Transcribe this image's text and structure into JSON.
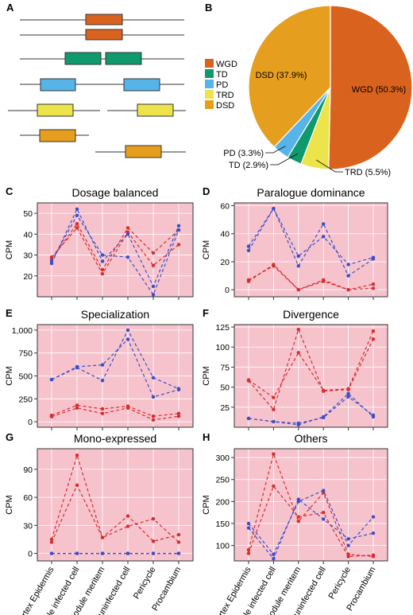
{
  "panels": {
    "A": {
      "label": "A",
      "legend": [
        {
          "name": "WGD",
          "color": "#d9621e"
        },
        {
          "name": "TD",
          "color": "#0f9a6e"
        },
        {
          "name": "PD",
          "color": "#56b4e9"
        },
        {
          "name": "TRD",
          "color": "#ede34a"
        },
        {
          "name": "DSD",
          "color": "#e69e1e"
        }
      ]
    },
    "B": {
      "label": "B"
    }
  },
  "colors": {
    "red": "#d62d2d",
    "blue": "#3a4fc7",
    "plot_bg": "#f6c3cd",
    "grid": "#ffffff"
  },
  "x_categories": [
    "Cortex Epidermis",
    "Nodule infected cell",
    "Nodule meritem",
    "Nodule uninfected cell",
    "Pericycle",
    "Procambium"
  ],
  "chart_data": [
    {
      "type": "pie",
      "panel": "B",
      "labels": [
        "WGD (50.3%)",
        "TRD (5.5%)",
        "TD (2.9%)",
        "PD (3.3%)",
        "DSD (37.9%)"
      ],
      "values": [
        50.3,
        5.5,
        2.9,
        3.3,
        37.9
      ],
      "colors": [
        "#d9621e",
        "#ede34a",
        "#0f9a6e",
        "#56b4e9",
        "#e69e1e"
      ]
    },
    {
      "type": "line",
      "panel": "C",
      "label": "C",
      "title": "Dosage balanced",
      "ylabel": "CPM",
      "ylim": [
        10,
        55
      ],
      "yticks": [
        20,
        30,
        40,
        50
      ],
      "ytick_labels": [
        "20",
        "30",
        "40",
        "50"
      ],
      "series": [
        {
          "color": "red",
          "values": [
            29,
            43,
            21,
            41,
            25,
            35
          ]
        },
        {
          "color": "red",
          "values": [
            28,
            45,
            23,
            43,
            31,
            42
          ]
        },
        {
          "color": "blue",
          "values": [
            26,
            52,
            27,
            40,
            15,
            44
          ]
        },
        {
          "color": "blue",
          "values": [
            27,
            49,
            30,
            29,
            11,
            42
          ]
        }
      ]
    },
    {
      "type": "line",
      "panel": "D",
      "label": "D",
      "title": "Paralogue dominance",
      "ylabel": "CPM",
      "ylim": [
        -5,
        62
      ],
      "yticks": [
        0,
        20,
        40,
        60
      ],
      "ytick_labels": [
        "0",
        "20",
        "40",
        "60"
      ],
      "series": [
        {
          "color": "blue",
          "values": [
            28,
            58,
            17,
            47,
            10,
            22
          ]
        },
        {
          "color": "blue",
          "values": [
            31,
            58,
            24,
            38,
            18,
            23
          ]
        },
        {
          "color": "red",
          "values": [
            6,
            18,
            0,
            6,
            0,
            4
          ]
        },
        {
          "color": "red",
          "values": [
            7,
            17,
            0,
            7,
            0,
            1
          ]
        }
      ]
    },
    {
      "type": "line",
      "panel": "E",
      "label": "E",
      "title": "Specialization",
      "ylabel": "CPM",
      "ylim": [
        -60,
        1060
      ],
      "yticks": [
        0,
        250,
        500,
        750,
        1000
      ],
      "ytick_labels": [
        "0",
        "250",
        "500",
        "750",
        "1,000"
      ],
      "series": [
        {
          "color": "blue",
          "values": [
            460,
            590,
            450,
            1000,
            480,
            360
          ]
        },
        {
          "color": "blue",
          "values": [
            460,
            600,
            620,
            900,
            270,
            350
          ]
        },
        {
          "color": "red",
          "values": [
            70,
            180,
            140,
            170,
            60,
            90
          ]
        },
        {
          "color": "red",
          "values": [
            55,
            150,
            90,
            150,
            20,
            60
          ]
        }
      ]
    },
    {
      "type": "line",
      "panel": "F",
      "label": "F",
      "title": "Divergence",
      "ylabel": "CPM",
      "ylim": [
        0,
        128
      ],
      "yticks": [
        25,
        50,
        75,
        100,
        125
      ],
      "ytick_labels": [
        "25",
        "50",
        "75",
        "100",
        "125"
      ],
      "series": [
        {
          "color": "red",
          "values": [
            58,
            22,
            122,
            45,
            47,
            110
          ]
        },
        {
          "color": "red",
          "values": [
            59,
            37,
            93,
            46,
            48,
            120
          ]
        },
        {
          "color": "blue",
          "values": [
            11,
            7,
            3,
            13,
            42,
            13
          ]
        },
        {
          "color": "blue",
          "values": [
            11,
            7,
            5,
            12,
            38,
            15
          ]
        }
      ]
    },
    {
      "type": "line",
      "panel": "G",
      "label": "G",
      "title": "Mono-expressed",
      "ylabel": "CPM",
      "ylim": [
        -8,
        112
      ],
      "yticks": [
        0,
        30,
        60,
        90
      ],
      "ytick_labels": [
        "0",
        "30",
        "60",
        "90"
      ],
      "series": [
        {
          "color": "red",
          "values": [
            15,
            105,
            17,
            40,
            13,
            20
          ]
        },
        {
          "color": "red",
          "values": [
            12,
            73,
            17,
            29,
            37,
            12
          ]
        },
        {
          "color": "blue",
          "values": [
            0,
            0,
            0,
            0,
            0,
            0
          ]
        },
        {
          "color": "blue",
          "values": [
            0,
            0,
            0,
            0,
            0,
            0
          ]
        }
      ]
    },
    {
      "type": "line",
      "panel": "H",
      "label": "H",
      "title": "Others",
      "ylabel": "CPM",
      "ylim": [
        65,
        320
      ],
      "yticks": [
        100,
        150,
        200,
        250,
        300
      ],
      "ytick_labels": [
        "100",
        "150",
        "200",
        "250",
        "300"
      ],
      "series": [
        {
          "color": "red",
          "values": [
            90,
            308,
            155,
            220,
            80,
            75
          ]
        },
        {
          "color": "red",
          "values": [
            82,
            235,
            165,
            175,
            75,
            78
          ]
        },
        {
          "color": "blue",
          "values": [
            150,
            80,
            200,
            225,
            100,
            165
          ]
        },
        {
          "color": "blue",
          "values": [
            140,
            70,
            205,
            160,
            115,
            128
          ]
        }
      ]
    }
  ]
}
